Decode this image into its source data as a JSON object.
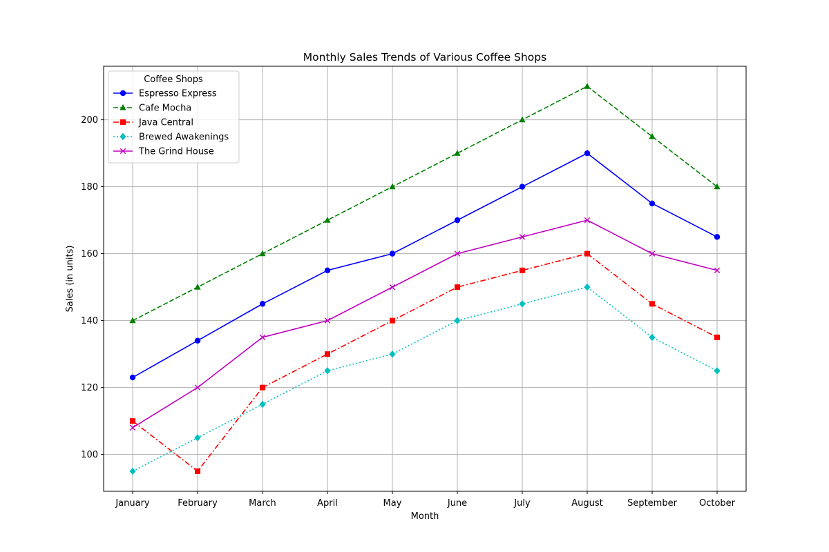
{
  "chart_data": {
    "type": "line",
    "title": "Monthly Sales Trends of Various Coffee Shops",
    "xlabel": "Month",
    "ylabel": "Sales (in units)",
    "categories": [
      "January",
      "February",
      "March",
      "April",
      "May",
      "June",
      "July",
      "August",
      "September",
      "October"
    ],
    "ylim": [
      89,
      216
    ],
    "yticks": [
      100,
      120,
      140,
      160,
      180,
      200
    ],
    "grid": true,
    "legend": {
      "title": "Coffee Shops",
      "placement": "top-left"
    },
    "series": [
      {
        "name": "Espresso Express",
        "values": [
          123,
          134,
          145,
          155,
          160,
          170,
          180,
          190,
          175,
          165
        ],
        "color": "#0000ff",
        "line_style": "solid",
        "marker": "circle"
      },
      {
        "name": "Cafe Mocha",
        "values": [
          140,
          150,
          160,
          170,
          180,
          190,
          200,
          210,
          195,
          180
        ],
        "color": "#008000",
        "line_style": "dashed",
        "marker": "triangle"
      },
      {
        "name": "Java Central",
        "values": [
          110,
          95,
          120,
          130,
          140,
          150,
          155,
          160,
          145,
          135
        ],
        "color": "#ff0000",
        "line_style": "dashdot",
        "marker": "square"
      },
      {
        "name": "Brewed Awakenings",
        "values": [
          95,
          105,
          115,
          125,
          130,
          140,
          145,
          150,
          135,
          125
        ],
        "color": "#00bfbf",
        "line_style": "dotted",
        "marker": "diamond"
      },
      {
        "name": "The Grind House",
        "values": [
          108,
          120,
          135,
          140,
          150,
          160,
          165,
          170,
          160,
          155
        ],
        "color": "#bf00bf",
        "line_style": "solid",
        "marker": "x"
      }
    ]
  }
}
